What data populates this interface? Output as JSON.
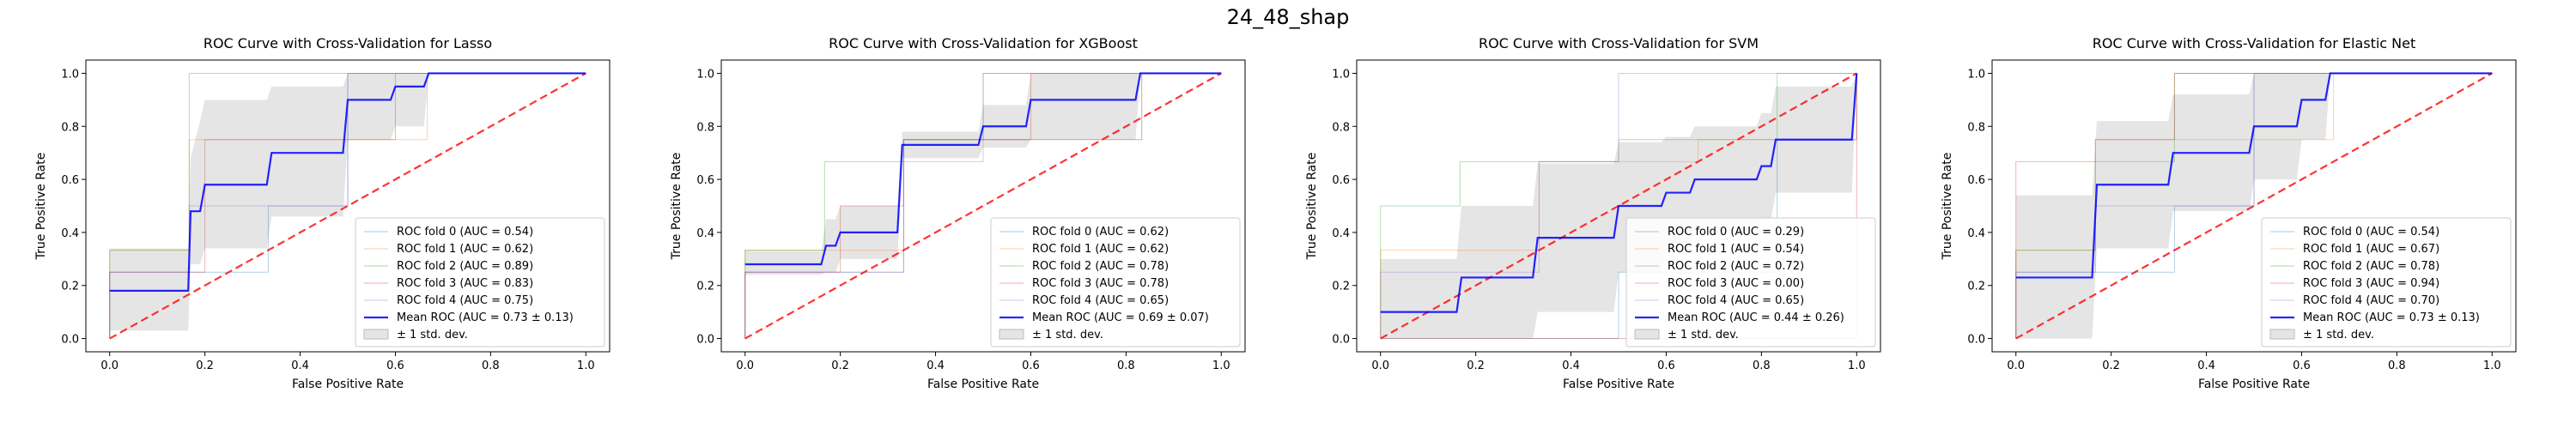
{
  "figure": {
    "title": "24_48_shap"
  },
  "chart_data": [
    {
      "type": "line",
      "title": "ROC Curve with Cross-Validation for Lasso",
      "xlabel": "False Positive Rate",
      "ylabel": "True Positive Rate",
      "xlim": [
        -0.05,
        1.05
      ],
      "ylim": [
        -0.05,
        1.05
      ],
      "xticks": [
        "0.0",
        "0.2",
        "0.4",
        "0.6",
        "0.8",
        "1.0"
      ],
      "yticks": [
        "0.0",
        "0.2",
        "0.4",
        "0.6",
        "0.8",
        "1.0"
      ],
      "legend_position": "lower-right",
      "folds": [
        {
          "label": "ROC fold 0 (AUC = 0.54)",
          "color": "#1f77b4",
          "x": [
            0,
            0,
            0.333,
            0.333,
            0.5,
            0.5,
            1
          ],
          "y": [
            0,
            0.25,
            0.25,
            0.5,
            0.5,
            1,
            1
          ]
        },
        {
          "label": "ROC fold 1 (AUC = 0.62)",
          "color": "#ff7f0e",
          "x": [
            0,
            0,
            0.167,
            0.167,
            0.667,
            0.667,
            1
          ],
          "y": [
            0,
            0.333,
            0.333,
            0.75,
            0.75,
            1,
            1
          ]
        },
        {
          "label": "ROC fold 2 (AUC = 0.89)",
          "color": "#2ca02c",
          "x": [
            0,
            0,
            0.167,
            0.167,
            1
          ],
          "y": [
            0,
            0.333,
            0.333,
            1,
            1
          ]
        },
        {
          "label": "ROC fold 3 (AUC = 0.83)",
          "color": "#d62728",
          "x": [
            0,
            0,
            0.2,
            0.2,
            0.6,
            0.6,
            1
          ],
          "y": [
            0,
            0.25,
            0.25,
            0.75,
            0.75,
            1,
            1
          ]
        },
        {
          "label": "ROC fold 4 (AUC = 0.75)",
          "color": "#9467bd",
          "x": [
            0,
            0,
            0.167,
            0.167,
            0.5,
            0.5,
            1
          ],
          "y": [
            0,
            0.25,
            0.25,
            0.5,
            0.5,
            1,
            1
          ]
        }
      ],
      "mean": {
        "label": "Mean ROC (AUC = 0.73 ± 0.13)",
        "color": "#0000ff",
        "x": [
          0,
          0.165,
          0.17,
          0.19,
          0.2,
          0.33,
          0.34,
          0.49,
          0.5,
          0.59,
          0.6,
          0.66,
          0.67,
          1.0
        ],
        "y": [
          0.18,
          0.18,
          0.48,
          0.48,
          0.58,
          0.58,
          0.7,
          0.7,
          0.9,
          0.9,
          0.95,
          0.95,
          1.0,
          1.0
        ]
      },
      "band": {
        "label": "± 1 std. dev.",
        "color": "#d3d3d3",
        "x": [
          0,
          0.165,
          0.17,
          0.19,
          0.2,
          0.33,
          0.34,
          0.49,
          0.5,
          0.59,
          0.6,
          0.66,
          0.67,
          1.0
        ],
        "upper": [
          0.34,
          0.34,
          0.68,
          0.82,
          0.9,
          0.9,
          0.95,
          0.95,
          1.0,
          1.0,
          1.0,
          1.0,
          1.0,
          1.0
        ],
        "lower": [
          0.03,
          0.03,
          0.28,
          0.28,
          0.34,
          0.34,
          0.46,
          0.46,
          0.75,
          0.75,
          0.8,
          0.8,
          1.0,
          1.0
        ]
      }
    },
    {
      "type": "line",
      "title": "ROC Curve with Cross-Validation for XGBoost",
      "xlabel": "False Positive Rate",
      "ylabel": "True Positive Rate",
      "xlim": [
        -0.05,
        1.05
      ],
      "ylim": [
        -0.05,
        1.05
      ],
      "xticks": [
        "0.0",
        "0.2",
        "0.4",
        "0.6",
        "0.8",
        "1.0"
      ],
      "yticks": [
        "0.0",
        "0.2",
        "0.4",
        "0.6",
        "0.8",
        "1.0"
      ],
      "legend_position": "lower-right",
      "folds": [
        {
          "label": "ROC fold 0 (AUC = 0.62)",
          "color": "#1f77b4",
          "x": [
            0,
            0,
            0.333,
            0.333,
            0.833,
            0.833,
            1
          ],
          "y": [
            0,
            0.25,
            0.25,
            0.75,
            0.75,
            1,
            1
          ]
        },
        {
          "label": "ROC fold 1 (AUC = 0.62)",
          "color": "#ff7f0e",
          "x": [
            0,
            0,
            0.333,
            0.333,
            0.833,
            0.833,
            1
          ],
          "y": [
            0,
            0.333,
            0.333,
            0.75,
            0.75,
            1,
            1
          ]
        },
        {
          "label": "ROC fold 2 (AUC = 0.78)",
          "color": "#2ca02c",
          "x": [
            0,
            0,
            0.167,
            0.167,
            0.333,
            0.333,
            0.5,
            0.5,
            1
          ],
          "y": [
            0,
            0.333,
            0.333,
            0.667,
            0.667,
            0.75,
            0.75,
            1,
            1
          ]
        },
        {
          "label": "ROC fold 3 (AUC = 0.78)",
          "color": "#d62728",
          "x": [
            0,
            0,
            0.2,
            0.2,
            0.333,
            0.333,
            0.6,
            0.6,
            1
          ],
          "y": [
            0,
            0.25,
            0.25,
            0.5,
            0.5,
            0.75,
            0.75,
            1,
            1
          ]
        },
        {
          "label": "ROC fold 4 (AUC = 0.65)",
          "color": "#9467bd",
          "x": [
            0,
            0,
            0.333,
            0.333,
            0.5,
            0.5,
            1
          ],
          "y": [
            0,
            0.25,
            0.25,
            0.667,
            0.667,
            1,
            1
          ]
        }
      ],
      "mean": {
        "label": "Mean ROC (AUC = 0.69 ± 0.07)",
        "color": "#0000ff",
        "x": [
          0,
          0.16,
          0.17,
          0.19,
          0.2,
          0.32,
          0.33,
          0.49,
          0.5,
          0.59,
          0.6,
          0.82,
          0.83,
          1.0
        ],
        "y": [
          0.28,
          0.28,
          0.35,
          0.35,
          0.4,
          0.4,
          0.73,
          0.73,
          0.8,
          0.8,
          0.9,
          0.9,
          1.0,
          1.0
        ]
      },
      "band": {
        "label": "± 1 std. dev.",
        "color": "#d3d3d3",
        "x": [
          0,
          0.16,
          0.17,
          0.19,
          0.2,
          0.32,
          0.33,
          0.49,
          0.5,
          0.59,
          0.6,
          0.82,
          0.83,
          1.0
        ],
        "upper": [
          0.33,
          0.33,
          0.45,
          0.45,
          0.5,
          0.5,
          0.78,
          0.78,
          0.88,
          0.88,
          1.0,
          1.0,
          1.0,
          1.0
        ],
        "lower": [
          0.24,
          0.24,
          0.25,
          0.25,
          0.3,
          0.3,
          0.68,
          0.68,
          0.72,
          0.72,
          0.75,
          0.75,
          1.0,
          1.0
        ]
      }
    },
    {
      "type": "line",
      "title": "ROC Curve with Cross-Validation for SVM",
      "xlabel": "False Positive Rate",
      "ylabel": "True Positive Rate",
      "xlim": [
        -0.05,
        1.05
      ],
      "ylim": [
        -0.05,
        1.05
      ],
      "xticks": [
        "0.0",
        "0.2",
        "0.4",
        "0.6",
        "0.8",
        "1.0"
      ],
      "yticks": [
        "0.0",
        "0.2",
        "0.4",
        "0.6",
        "0.8",
        "1.0"
      ],
      "legend_position": "lower-right",
      "folds": [
        {
          "label": "ROC fold 0 (AUC = 0.29)",
          "color": "#1f77b4",
          "x": [
            0,
            0.5,
            0.5,
            0.833,
            0.833,
            1,
            1
          ],
          "y": [
            0,
            0,
            0.25,
            0.25,
            0.75,
            0.75,
            1
          ]
        },
        {
          "label": "ROC fold 1 (AUC = 0.54)",
          "color": "#ff7f0e",
          "x": [
            0,
            0,
            0.333,
            0.333,
            0.667,
            0.667,
            1,
            1
          ],
          "y": [
            0,
            0.333,
            0.333,
            0.667,
            0.667,
            0.75,
            0.75,
            1
          ]
        },
        {
          "label": "ROC fold 2 (AUC = 0.72)",
          "color": "#2ca02c",
          "x": [
            0,
            0,
            0.167,
            0.167,
            0.5,
            0.5,
            0.833,
            0.833,
            1
          ],
          "y": [
            0,
            0.5,
            0.5,
            0.667,
            0.667,
            0.75,
            0.75,
            1,
            1
          ]
        },
        {
          "label": "ROC fold 3 (AUC = 0.00)",
          "color": "#d62728",
          "x": [
            0,
            1,
            1
          ],
          "y": [
            0,
            0,
            1
          ]
        },
        {
          "label": "ROC fold 4 (AUC = 0.65)",
          "color": "#9467bd",
          "x": [
            0,
            0,
            0.333,
            0.333,
            0.5,
            0.5,
            1
          ],
          "y": [
            0,
            0.25,
            0.25,
            0.667,
            0.667,
            1,
            1
          ]
        }
      ],
      "mean": {
        "label": "Mean ROC (AUC = 0.44 ± 0.26)",
        "color": "#0000ff",
        "x": [
          0,
          0.16,
          0.17,
          0.32,
          0.33,
          0.49,
          0.5,
          0.59,
          0.6,
          0.65,
          0.66,
          0.79,
          0.8,
          0.82,
          0.83,
          0.99,
          1.0
        ],
        "y": [
          0.1,
          0.1,
          0.23,
          0.23,
          0.38,
          0.38,
          0.5,
          0.5,
          0.55,
          0.55,
          0.6,
          0.6,
          0.65,
          0.65,
          0.75,
          0.75,
          1.0
        ]
      },
      "band": {
        "label": "± 1 std. dev.",
        "color": "#d3d3d3",
        "x": [
          0,
          0.16,
          0.17,
          0.32,
          0.33,
          0.49,
          0.5,
          0.59,
          0.6,
          0.65,
          0.66,
          0.79,
          0.8,
          0.82,
          0.83,
          0.99,
          1.0
        ],
        "upper": [
          0.3,
          0.3,
          0.5,
          0.5,
          0.66,
          0.66,
          0.74,
          0.74,
          0.76,
          0.76,
          0.8,
          0.8,
          0.85,
          0.85,
          0.95,
          0.95,
          1.0
        ],
        "lower": [
          0,
          0,
          0,
          0,
          0.1,
          0.1,
          0.25,
          0.25,
          0.34,
          0.34,
          0.4,
          0.4,
          0.45,
          0.45,
          0.55,
          0.55,
          1.0
        ]
      }
    },
    {
      "type": "line",
      "title": "ROC Curve with Cross-Validation for Elastic Net",
      "xlabel": "False Positive Rate",
      "ylabel": "True Positive Rate",
      "xlim": [
        -0.05,
        1.05
      ],
      "ylim": [
        -0.05,
        1.05
      ],
      "xticks": [
        "0.0",
        "0.2",
        "0.4",
        "0.6",
        "0.8",
        "1.0"
      ],
      "yticks": [
        "0.0",
        "0.2",
        "0.4",
        "0.6",
        "0.8",
        "1.0"
      ],
      "legend_position": "lower-right",
      "folds": [
        {
          "label": "ROC fold 0 (AUC = 0.54)",
          "color": "#1f77b4",
          "x": [
            0,
            0,
            0.333,
            0.333,
            0.5,
            0.5,
            1
          ],
          "y": [
            0,
            0.25,
            0.25,
            0.5,
            0.5,
            1,
            1
          ]
        },
        {
          "label": "ROC fold 1 (AUC = 0.67)",
          "color": "#ff7f0e",
          "x": [
            0,
            0,
            0.167,
            0.167,
            0.667,
            0.667,
            1
          ],
          "y": [
            0,
            0.333,
            0.333,
            0.75,
            0.75,
            1,
            1
          ]
        },
        {
          "label": "ROC fold 2 (AUC = 0.78)",
          "color": "#2ca02c",
          "x": [
            0,
            0,
            0.167,
            0.167,
            0.333,
            0.333,
            0.5,
            0.5,
            1
          ],
          "y": [
            0,
            0.333,
            0.333,
            0.667,
            0.667,
            1,
            1,
            1,
            1
          ]
        },
        {
          "label": "ROC fold 3 (AUC = 0.94)",
          "color": "#d62728",
          "x": [
            0,
            0,
            0.167,
            0.167,
            0.333,
            0.333,
            1
          ],
          "y": [
            0,
            0.667,
            0.667,
            0.75,
            0.75,
            1,
            1
          ]
        },
        {
          "label": "ROC fold 4 (AUC = 0.70)",
          "color": "#9467bd",
          "x": [
            0,
            0,
            0.167,
            0.167,
            0.5,
            0.5,
            1
          ],
          "y": [
            0,
            0.25,
            0.25,
            0.5,
            0.5,
            1,
            1
          ]
        }
      ],
      "mean": {
        "label": "Mean ROC (AUC = 0.73 ± 0.13)",
        "color": "#0000ff",
        "x": [
          0,
          0.16,
          0.17,
          0.32,
          0.33,
          0.49,
          0.5,
          0.59,
          0.6,
          0.65,
          0.66,
          1.0
        ],
        "y": [
          0.23,
          0.23,
          0.58,
          0.58,
          0.7,
          0.7,
          0.8,
          0.8,
          0.9,
          0.9,
          1.0,
          1.0
        ]
      },
      "band": {
        "label": "± 1 std. dev.",
        "color": "#d3d3d3",
        "x": [
          0,
          0.16,
          0.17,
          0.32,
          0.33,
          0.49,
          0.5,
          0.59,
          0.6,
          0.65,
          0.66,
          1.0
        ],
        "upper": [
          0.54,
          0.54,
          0.82,
          0.82,
          0.92,
          0.92,
          1.0,
          1.0,
          1.0,
          1.0,
          1.0,
          1.0
        ],
        "lower": [
          0,
          0,
          0.34,
          0.34,
          0.48,
          0.48,
          0.6,
          0.6,
          0.75,
          0.75,
          1.0,
          1.0
        ]
      }
    }
  ]
}
